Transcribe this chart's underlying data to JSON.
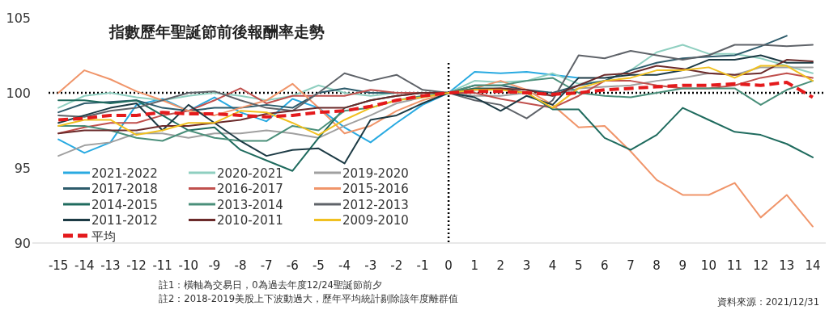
{
  "chart_data": {
    "type": "line",
    "title": "指數歷年聖誕節前後報酬率走勢",
    "x": [
      -15,
      -14,
      -13,
      -12,
      -11,
      -10,
      -9,
      -8,
      -7,
      -6,
      -5,
      -4,
      -3,
      -2,
      -1,
      0,
      1,
      2,
      3,
      4,
      5,
      6,
      7,
      8,
      9,
      10,
      11,
      12,
      13,
      14
    ],
    "xlim": [
      -16,
      14.5
    ],
    "xticks": [
      -15,
      -14,
      -13,
      -12,
      -11,
      -10,
      -9,
      -8,
      -7,
      -6,
      -5,
      -4,
      -3,
      -2,
      -1,
      0,
      1,
      2,
      3,
      4,
      5,
      6,
      7,
      8,
      9,
      10,
      11,
      12,
      13,
      14
    ],
    "ylim": [
      90,
      105
    ],
    "yticks": [
      90,
      95,
      100,
      105
    ],
    "legend": "bottom left",
    "series": [
      {
        "name": "2021-2022",
        "color": "#29aae1",
        "values": [
          96.9,
          96.0,
          96.7,
          99.2,
          99.6,
          98.8,
          99.7,
          98.7,
          98.1,
          99.6,
          99.0,
          97.7,
          96.7,
          98.0,
          99.2,
          100,
          101.4,
          101.3,
          101.4,
          101.2,
          101.0,
          null,
          null,
          null,
          null,
          null,
          null,
          null,
          null,
          null
        ]
      },
      {
        "name": "2020-2021",
        "color": "#8fcfc0",
        "values": [
          99.0,
          99.8,
          100.0,
          99.7,
          99.5,
          99.8,
          100.0,
          99.8,
          99.5,
          99.8,
          100.5,
          100.0,
          99.8,
          100.0,
          100.0,
          100,
          100.8,
          100.7,
          100.8,
          101.3,
          100.6,
          100.8,
          101.5,
          102.7,
          103.2,
          102.6,
          102.6,
          102.3,
          101.8,
          101.3
        ]
      },
      {
        "name": "2019-2020",
        "color": "#a0a0a0",
        "values": [
          95.8,
          96.5,
          96.7,
          97.3,
          97.3,
          97.0,
          97.3,
          97.3,
          97.5,
          97.3,
          97.0,
          97.8,
          98.5,
          99.3,
          99.7,
          100,
          99.8,
          99.8,
          100.0,
          99.8,
          100.3,
          100.4,
          100.5,
          100.8,
          101.0,
          101.3,
          101.2,
          101.7,
          101.7,
          101.7
        ]
      },
      {
        "name": "2017-2018",
        "color": "#2d5b6b",
        "values": [
          98.7,
          99.3,
          99.4,
          99.5,
          99.0,
          98.8,
          99.0,
          99.0,
          99.2,
          99.0,
          100.0,
          100.3,
          100.0,
          100.0,
          100.0,
          100,
          100.5,
          100.5,
          100.2,
          100.0,
          100.5,
          100.8,
          101.5,
          102.0,
          102.3,
          102.4,
          102.5,
          103.1,
          103.8,
          null
        ]
      },
      {
        "name": "2016-2017",
        "color": "#c0504d",
        "values": [
          97.3,
          97.7,
          98.0,
          98.0,
          98.5,
          98.8,
          99.5,
          100.3,
          99.3,
          99.8,
          99.8,
          99.8,
          100.2,
          100.0,
          100.0,
          100,
          100.0,
          99.6,
          99.3,
          99.0,
          99.8,
          100.8,
          100.8,
          100.5,
          100.3,
          100.3,
          100.5,
          101.0,
          101.3,
          101.0
        ]
      },
      {
        "name": "2015-2016",
        "color": "#f0956a",
        "values": [
          100.0,
          101.5,
          100.9,
          100.1,
          99.5,
          98.8,
          98.5,
          99.0,
          99.5,
          100.6,
          99.0,
          97.3,
          97.8,
          98.8,
          99.5,
          100,
          100.3,
          100.8,
          100.2,
          99.2,
          97.7,
          97.8,
          96.1,
          94.2,
          93.2,
          93.2,
          94.0,
          91.7,
          93.2,
          91.1
        ]
      },
      {
        "name": "2014-2015",
        "color": "#1f6b5e",
        "values": [
          99.5,
          99.5,
          99.3,
          99.5,
          98.5,
          97.5,
          97.7,
          96.2,
          95.5,
          94.8,
          97.0,
          99.0,
          99.5,
          99.8,
          100.0,
          100,
          100.3,
          100.3,
          100.0,
          98.9,
          98.9,
          97.0,
          96.2,
          97.2,
          99.0,
          98.2,
          97.4,
          97.2,
          96.6,
          95.7
        ]
      },
      {
        "name": "2013-2014",
        "color": "#4a8f7a",
        "values": [
          97.8,
          97.8,
          97.5,
          97.0,
          96.8,
          97.5,
          97.0,
          96.8,
          96.8,
          97.8,
          97.5,
          98.8,
          99.0,
          99.5,
          99.8,
          100,
          100.5,
          100.5,
          100.8,
          101.0,
          100.0,
          99.8,
          99.7,
          100.0,
          100.3,
          100.3,
          100.3,
          99.2,
          100.2,
          100.8
        ]
      },
      {
        "name": "2012-2013",
        "color": "#5f6369",
        "values": [
          98.5,
          98.4,
          98.8,
          99.0,
          99.5,
          100.0,
          100.1,
          99.5,
          99.0,
          98.8,
          100.0,
          101.3,
          100.8,
          101.2,
          100.2,
          100,
          99.5,
          99.2,
          98.3,
          99.5,
          102.5,
          102.3,
          102.8,
          102.5,
          102.2,
          102.5,
          103.2,
          103.2,
          103.1,
          103.2
        ]
      },
      {
        "name": "2011-2012",
        "color": "#1c3a44",
        "values": [
          98.0,
          98.5,
          99.0,
          99.3,
          97.5,
          99.2,
          98.0,
          96.8,
          95.8,
          96.2,
          96.3,
          95.3,
          98.2,
          98.5,
          99.3,
          100,
          99.7,
          98.8,
          99.8,
          99.2,
          101.0,
          101.0,
          101.2,
          101.2,
          101.5,
          102.2,
          102.2,
          102.5,
          102.0,
          102.0
        ]
      },
      {
        "name": "2010-2011",
        "color": "#6b2a2a",
        "values": [
          97.3,
          97.5,
          97.5,
          97.5,
          97.8,
          97.8,
          98.0,
          98.2,
          98.6,
          98.8,
          99.0,
          99.0,
          99.5,
          99.8,
          100.0,
          100,
          100.2,
          100.3,
          100.2,
          99.8,
          100.5,
          101.2,
          101.3,
          101.8,
          101.6,
          101.3,
          101.2,
          101.3,
          102.2,
          102.1
        ]
      },
      {
        "name": "2009-2010",
        "color": "#f0c020",
        "values": [
          97.8,
          98.2,
          98.2,
          97.2,
          97.5,
          98.0,
          98.0,
          98.8,
          98.7,
          98.0,
          97.2,
          98.2,
          99.0,
          99.5,
          99.7,
          100,
          100.2,
          100.2,
          100.0,
          99.0,
          100.3,
          100.8,
          101.0,
          101.5,
          101.5,
          101.7,
          101.0,
          101.8,
          101.8,
          100.8
        ]
      },
      {
        "name": "平均",
        "color": "#e41a1c",
        "line_style": "dashed",
        "values": [
          98.2,
          98.3,
          98.5,
          98.5,
          98.7,
          98.6,
          98.6,
          98.5,
          98.4,
          98.5,
          98.7,
          98.8,
          99.1,
          99.5,
          99.8,
          100,
          100.1,
          100.1,
          100.0,
          99.9,
          100.0,
          100.2,
          100.3,
          100.4,
          100.5,
          100.5,
          100.6,
          100.5,
          100.7,
          99.7
        ]
      }
    ],
    "ref_lines": [
      {
        "axis": "y",
        "value": 100,
        "color": "#000000",
        "line_style": "dotted"
      },
      {
        "axis": "x",
        "value": 0,
        "color": "#000000",
        "line_style": "dotted"
      }
    ],
    "annotations": [
      "註1：橫軸為交易日，0為過去年度12/24聖誕節前夕",
      "註2：2018-2019美股上下波動過大，歷年平均統計剔除該年度離群值",
      "資料來源：2021/12/31"
    ]
  }
}
